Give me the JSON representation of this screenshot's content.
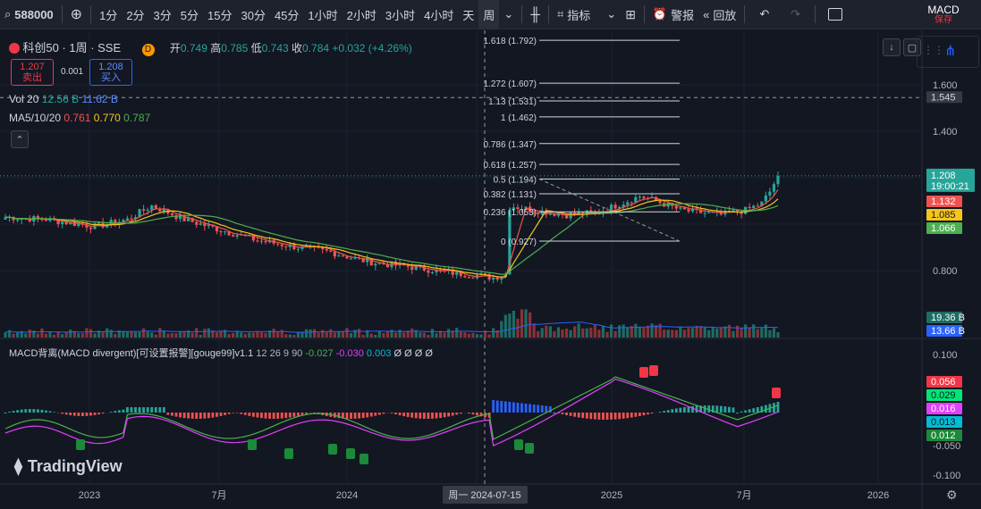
{
  "toolbar": {
    "symbol": "588000",
    "intervals": [
      "1分",
      "2分",
      "3分",
      "5分",
      "15分",
      "30分",
      "45分",
      "1小时",
      "2小时",
      "3小时",
      "4小时",
      "天",
      "周"
    ],
    "active_interval": "周",
    "indicators_label": "指标",
    "alert_label": "警报",
    "replay_label": "回放",
    "macd_title": "MACD",
    "macd_sub": "保存"
  },
  "legend": {
    "title": "科创50 · 1周 · SSE",
    "d_badge": "D",
    "ohlc": {
      "open_label": "开",
      "open": "0.749",
      "high_label": "高",
      "high": "0.785",
      "low_label": "低",
      "low": "0.743",
      "close_label": "收",
      "close": "0.784",
      "change": "+0.032 (+4.26%)"
    },
    "sell_price": "1.207",
    "sell_label": "卖出",
    "spread": "0.001",
    "buy_price": "1.208",
    "buy_label": "买入",
    "vol_label": "Vol 20",
    "vol_v1": "12.56 B",
    "vol_v2": "11.62 B",
    "ma_label": "MA5/10/20",
    "ma5": "0.761",
    "ma10": "0.770",
    "ma20": "0.787",
    "macd_label": "MACD背离(MACD divergent)[可设置报警][gouge99]v1.1",
    "macd_params": "12 26 9 90",
    "macd_v1": "-0.027",
    "macd_v2": "-0.030",
    "macd_v3": "0.003",
    "macd_tail": "Ø Ø Ø Ø"
  },
  "fib_levels": [
    "1.618 (1.792)",
    "1.272 (1.607)",
    "1.13 (1.531)",
    "1 (1.462)",
    "0.786 (1.347)",
    "0.618 (1.257)",
    "0.5 (1.194)",
    "0.382 (1.131)",
    "0.236 (1.053)",
    "0 (0.927)"
  ],
  "price_axis": {
    "ticks": [
      "1.600",
      "1.400",
      "0.800"
    ],
    "dashed_label": "1.545",
    "last_price": "1.208",
    "countdown": "19:00:21",
    "ma_tags": [
      "1.132",
      "1.085",
      "1.066"
    ],
    "vol_tags": [
      "19.36 B",
      "13.66 B"
    ]
  },
  "macd_axis": {
    "ticks": [
      "0.100",
      "-0.050",
      "-0.100"
    ],
    "tags": [
      "0.056",
      "0.029",
      "0.016",
      "0.013",
      "0.012"
    ]
  },
  "time_axis": {
    "labels": [
      "2023",
      "7月",
      "2024",
      "2025",
      "7月",
      "2026"
    ],
    "crosshair": "周一 2024-07-15"
  },
  "watermark": "TradingView",
  "colors": {
    "up": "#26a69a",
    "down": "#ef5350",
    "ma5": "#ef5350",
    "ma10": "#f5c518",
    "ma20": "#4caf50",
    "bg": "#131722",
    "macd_line": "#4caf50",
    "signal_line": "#e040fb"
  }
}
